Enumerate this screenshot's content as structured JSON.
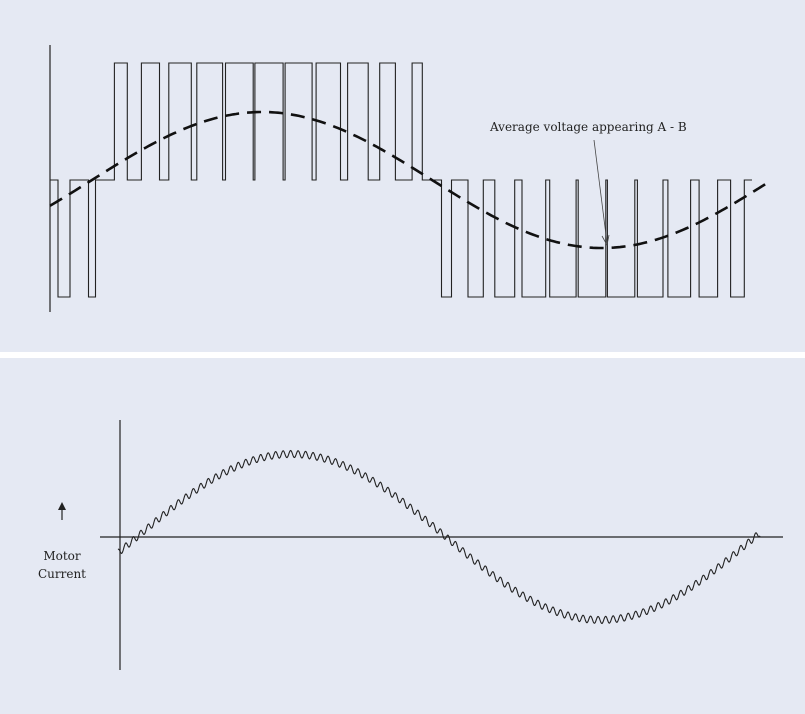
{
  "top_panel": {
    "annotation": "Average voltage appearing A - B"
  },
  "bottom_panel": {
    "axis_label": {
      "line1": "Motor",
      "line2": "Current"
    }
  }
}
